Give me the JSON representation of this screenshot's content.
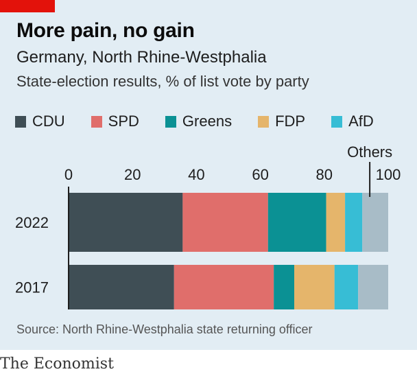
{
  "header": {
    "title": "More pain, no gain",
    "subtitle": "Germany, North Rhine-Westphalia",
    "description": "State-election results, % of list vote by party"
  },
  "legend": [
    {
      "label": "CDU",
      "color": "#3f4e55"
    },
    {
      "label": "SPD",
      "color": "#e06e6b"
    },
    {
      "label": "Greens",
      "color": "#0b9194"
    },
    {
      "label": "FDP",
      "color": "#e5b56b"
    },
    {
      "label": "AfD",
      "color": "#37bdd5"
    }
  ],
  "chart_data": {
    "type": "bar",
    "orientation": "horizontal",
    "stacked": true,
    "title": "More pain, no gain",
    "subtitle": "Germany, North Rhine-Westphalia",
    "ylabel": "State-election results, % of list vote by party",
    "xlim": [
      0,
      100
    ],
    "xticks": [
      0,
      20,
      40,
      60,
      80,
      100
    ],
    "categories": [
      "2022",
      "2017"
    ],
    "series": [
      {
        "name": "CDU",
        "color": "#3f4e55",
        "values": [
          35.7,
          33.0
        ]
      },
      {
        "name": "SPD",
        "color": "#e06e6b",
        "values": [
          26.7,
          31.2
        ]
      },
      {
        "name": "Greens",
        "color": "#0b9194",
        "values": [
          18.2,
          6.4
        ]
      },
      {
        "name": "FDP",
        "color": "#e5b56b",
        "values": [
          5.9,
          12.6
        ]
      },
      {
        "name": "AfD",
        "color": "#37bdd5",
        "values": [
          5.4,
          7.4
        ]
      },
      {
        "name": "Others",
        "color": "#a8bcc7",
        "values": [
          8.1,
          9.4
        ]
      }
    ],
    "annotation": {
      "label": "Others",
      "series": "Others",
      "category": "2022"
    },
    "legend_position": "top"
  },
  "footer": {
    "source": "Source: North Rhine-Westphalia state returning officer",
    "brand": "The Economist"
  }
}
